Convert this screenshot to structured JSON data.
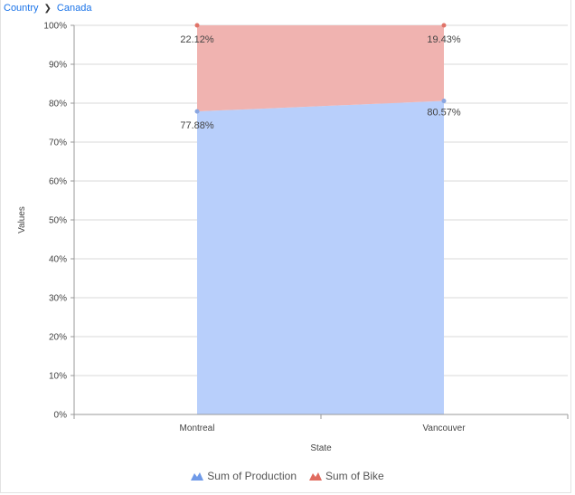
{
  "breadcrumb": {
    "items": [
      "Country",
      "Canada"
    ]
  },
  "colors": {
    "production": "#b8cffb",
    "production_marker": "#8aa6e0",
    "bike": "#f0b3b0",
    "bike_marker": "#e07368",
    "legend_production": "#6f9ae8",
    "legend_bike": "#e06b5f",
    "grid": "#d9d9d9",
    "axis": "#999999",
    "text": "#444444"
  },
  "chart_data": {
    "type": "area",
    "stacked": "percent",
    "categories": [
      "Montreal",
      "Vancouver"
    ],
    "series": [
      {
        "name": "Sum of Production",
        "values": [
          77.88,
          80.57
        ],
        "labels": [
          "77.88%",
          "80.57%"
        ]
      },
      {
        "name": "Sum of Bike",
        "values": [
          22.12,
          19.43
        ],
        "labels": [
          "22.12%",
          "19.43%"
        ]
      }
    ],
    "xlabel": "State",
    "ylabel": "Values",
    "ylim": [
      0,
      100
    ],
    "yticks": [
      "0%",
      "10%",
      "20%",
      "30%",
      "40%",
      "50%",
      "60%",
      "70%",
      "80%",
      "90%",
      "100%"
    ],
    "grid": true,
    "legend_position": "bottom"
  }
}
